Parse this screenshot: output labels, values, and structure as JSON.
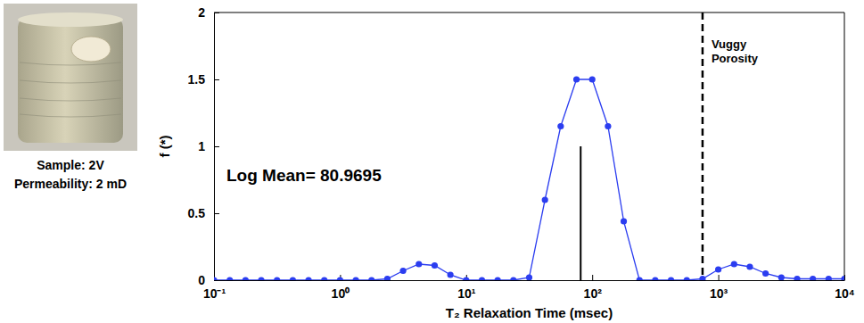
{
  "chart_data": {
    "type": "line",
    "sample_label": "Sample: 2V",
    "permeability_label": "Permeability: 2 mD",
    "x_label": "T₂ Relaxation Time (msec)",
    "y_label": "f (*)",
    "log": "x",
    "grid": false,
    "xlim": [
      0.1,
      10000
    ],
    "ylim": [
      0,
      2
    ],
    "xticks": [
      {
        "value": 0.1,
        "label": "10⁻¹"
      },
      {
        "value": 1,
        "label": "10⁰"
      },
      {
        "value": 10,
        "label": "10¹"
      },
      {
        "value": 100,
        "label": "10²"
      },
      {
        "value": 1000,
        "label": "10³"
      },
      {
        "value": 10000,
        "label": "10⁴"
      }
    ],
    "yticks": [
      0,
      0.5,
      1,
      1.5,
      2
    ],
    "x": [
      0.1,
      0.1334,
      0.1778,
      0.2371,
      0.3162,
      0.4217,
      0.5623,
      0.7499,
      1,
      1.334,
      1.778,
      2.371,
      3.162,
      4.217,
      5.623,
      7.499,
      10,
      13.34,
      17.78,
      23.71,
      31.62,
      42.17,
      56.23,
      74.99,
      100,
      133.4,
      177.8,
      237.1,
      316.2,
      421.7,
      562.3,
      749.9,
      1000,
      1334,
      1778,
      2371,
      3162,
      4217,
      5623,
      7499,
      10000
    ],
    "series": [
      {
        "name": "f",
        "color": "#2b3df0",
        "marker": "circle",
        "line_style": "solid",
        "values": [
          0,
          0,
          0,
          0,
          0,
          0,
          0,
          0,
          0,
          0,
          0,
          0.01,
          0.07,
          0.12,
          0.11,
          0.04,
          0,
          0,
          0,
          0,
          0.02,
          0.6,
          1.15,
          1.5,
          1.5,
          1.15,
          0.44,
          0,
          0,
          0,
          0,
          0.01,
          0.08,
          0.12,
          0.1,
          0.05,
          0.02,
          0.01,
          0.01,
          0.01,
          0.01
        ]
      }
    ],
    "log_mean": {
      "text": "Log Mean= 80.9695",
      "x": 80.9695,
      "y": 1
    },
    "vuggy_cutoff": {
      "text": "Vuggy Porosity",
      "x": 750
    }
  }
}
